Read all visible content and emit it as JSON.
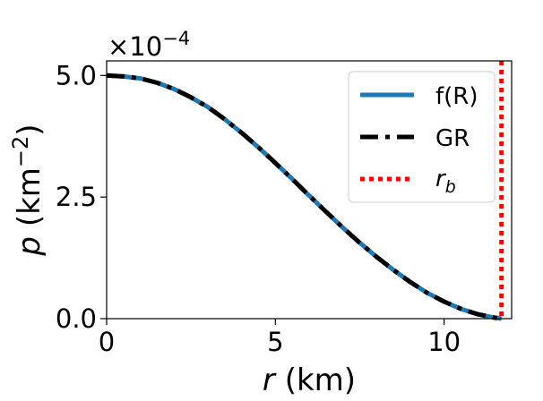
{
  "chart_data": {
    "type": "line",
    "xlabel_italic": "r",
    "xlabel_rest": " (km)",
    "ylabel_italic": "p",
    "ylabel_rest_pre": " (km",
    "ylabel_sup": "−2",
    "ylabel_rest_post": ")",
    "y_offset_base": "×10",
    "y_offset_exp": "−4",
    "x_ticks": [
      0,
      5,
      10
    ],
    "x_tick_labels": [
      "0",
      "5",
      "10"
    ],
    "y_ticks": [
      0.0,
      2.5,
      5.0
    ],
    "y_tick_labels": [
      "0.0",
      "2.5",
      "5.0"
    ],
    "xlim": [
      0,
      12
    ],
    "ylim": [
      0,
      5.3
    ],
    "y_scale_factor": "1e-4",
    "grid": false,
    "legend_position": "upper-right",
    "series": [
      {
        "name": "f(R)",
        "style": "solid",
        "color": "#1f77b4",
        "x": [
          0,
          0.5,
          1,
          1.5,
          2,
          2.5,
          3,
          3.5,
          4,
          4.5,
          5,
          5.5,
          6,
          6.5,
          7,
          7.5,
          8,
          8.5,
          9,
          9.5,
          10,
          10.5,
          11,
          11.5,
          11.7
        ],
        "y": [
          5.0,
          4.98,
          4.94,
          4.85,
          4.72,
          4.55,
          4.35,
          4.1,
          3.82,
          3.52,
          3.2,
          2.87,
          2.53,
          2.2,
          1.87,
          1.56,
          1.27,
          1.0,
          0.75,
          0.53,
          0.35,
          0.2,
          0.09,
          0.02,
          0.0
        ]
      },
      {
        "name": "GR",
        "style": "dashdot",
        "color": "#000000",
        "x": [
          0,
          0.5,
          1,
          1.5,
          2,
          2.5,
          3,
          3.5,
          4,
          4.5,
          5,
          5.5,
          6,
          6.5,
          7,
          7.5,
          8,
          8.5,
          9,
          9.5,
          10,
          10.5,
          11,
          11.5,
          11.7
        ],
        "y": [
          5.0,
          4.98,
          4.94,
          4.85,
          4.72,
          4.55,
          4.35,
          4.1,
          3.82,
          3.52,
          3.2,
          2.87,
          2.53,
          2.2,
          1.87,
          1.56,
          1.27,
          1.0,
          0.75,
          0.53,
          0.35,
          0.2,
          0.09,
          0.02,
          0.0
        ]
      },
      {
        "name_italic": "r",
        "name_sub": "b",
        "style": "dotted",
        "color": "#ff0000",
        "vertical_x": 11.7
      }
    ]
  }
}
